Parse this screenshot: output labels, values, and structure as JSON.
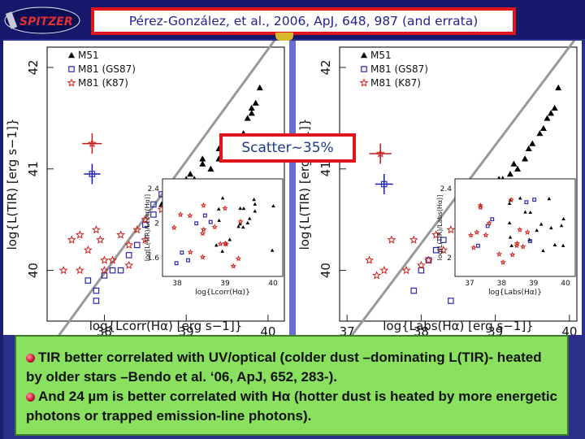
{
  "header": {
    "logo_text": "SPITZER",
    "citation": "Pérez-González, et al., 2006, ApJ, 648, 987 (and errata)"
  },
  "callout": {
    "text": "Scatter~35%"
  },
  "legend": [
    {
      "name": "M51",
      "marker": "filled-triangle",
      "color": "#000000"
    },
    {
      "name": "M81  (GS87)",
      "marker": "open-square",
      "color": "#2a2ab0"
    },
    {
      "name": "M81  (K87)",
      "marker": "open-star",
      "color": "#d0201c"
    }
  ],
  "bullets": [
    {
      "icon": "red-bullet-icon",
      "text": "TIR better correlated with UV/optical (colder dust –dominating L(TIR)- heated by older stars –Bendo et al. ‘06, ApJ, 652, 283-)."
    },
    {
      "icon": "red-bullet-icon",
      "text": "And 24 µm is better correlated with Hα (hotter dust is heated by more energetic photons or trapped emission-line photons)."
    }
  ],
  "chart_data": [
    {
      "type": "scatter",
      "panel": "left",
      "xlabel": "log{Lcorr(Hα) [erg s−1]}",
      "xlabel_sup": "corr",
      "ylabel": "log{L(TIR) [erg s−1]}",
      "xlim": [
        37.3,
        40.2
      ],
      "ylim": [
        39.5,
        42.2
      ],
      "xticks": [
        "38",
        "39",
        "40"
      ],
      "yticks": [
        "40",
        "41",
        "42"
      ],
      "fit_line": {
        "x": [
          37.3,
          40.2
        ],
        "y": [
          39.2,
          42.4
        ]
      },
      "series": [
        {
          "name": "M51",
          "points": [
            [
              39.9,
              41.8
            ],
            [
              39.85,
              41.65
            ],
            [
              39.8,
              41.6
            ],
            [
              39.75,
              41.5
            ],
            [
              39.7,
              41.35
            ],
            [
              39.65,
              41.3
            ],
            [
              39.6,
              41.25
            ],
            [
              39.5,
              41.2
            ],
            [
              39.4,
              41.1
            ],
            [
              39.3,
              41.0
            ],
            [
              39.2,
              41.05
            ],
            [
              39.1,
              40.9
            ],
            [
              39.05,
              40.95
            ],
            [
              39.0,
              40.85
            ],
            [
              38.95,
              40.85
            ],
            [
              38.9,
              40.8
            ],
            [
              38.85,
              40.75
            ],
            [
              38.8,
              40.7
            ],
            [
              38.75,
              40.7
            ],
            [
              39.0,
              40.9
            ],
            [
              39.2,
              41.1
            ],
            [
              39.4,
              41.2
            ],
            [
              39.6,
              41.3
            ],
            [
              39.8,
              41.55
            ],
            [
              38.7,
              40.65
            ]
          ]
        },
        {
          "name": "M81 (GS87)",
          "points": [
            [
              38.7,
              40.75
            ],
            [
              38.6,
              40.65
            ],
            [
              38.5,
              40.45
            ],
            [
              38.4,
              40.25
            ],
            [
              38.3,
              40.15
            ],
            [
              38.2,
              40.0
            ],
            [
              38.1,
              40.0
            ],
            [
              38.0,
              39.95
            ],
            [
              37.9,
              39.8
            ],
            [
              37.8,
              39.9
            ],
            [
              38.6,
              40.55
            ],
            [
              37.9,
              39.7
            ]
          ]
        },
        {
          "name": "M81 (K87)",
          "points": [
            [
              38.8,
              40.8
            ],
            [
              38.7,
              40.6
            ],
            [
              38.5,
              40.3
            ],
            [
              38.4,
              40.4
            ],
            [
              38.3,
              40.25
            ],
            [
              38.2,
              40.35
            ],
            [
              38.1,
              40.1
            ],
            [
              38.0,
              40.1
            ],
            [
              37.95,
              40.3
            ],
            [
              37.9,
              40.4
            ],
            [
              37.8,
              40.2
            ],
            [
              37.7,
              40.0
            ],
            [
              37.6,
              40.3
            ],
            [
              38.5,
              40.5
            ],
            [
              38.3,
              40.05
            ],
            [
              38.0,
              40.0
            ],
            [
              37.7,
              40.35
            ],
            [
              37.5,
              40.0
            ]
          ]
        }
      ],
      "error_points": [
        {
          "series": "M81 (K87)",
          "x": 37.85,
          "y": 41.25,
          "xerr": 0.12,
          "yerr": 0.1
        },
        {
          "series": "M81 (GS87)",
          "x": 37.85,
          "y": 40.95,
          "xerr": 0.1,
          "yerr": 0.1
        }
      ],
      "inset": {
        "xlabel": "log{Lcorr(Hα)}",
        "ylabel": "log[L(TIR)/Lcorr(Hα)]",
        "xticks": [
          "38",
          "39",
          "40"
        ],
        "yticks": [
          "1.6",
          "2",
          "2.4"
        ]
      }
    },
    {
      "type": "scatter",
      "panel": "right",
      "xlabel": "log{Labs(Hα) [erg s−1]}",
      "xlabel_sup": "abs",
      "ylabel": "log{L(TIR) [erg s−1]}",
      "xlim": [
        36.9,
        40.1
      ],
      "ylim": [
        39.5,
        42.2
      ],
      "xticks": [
        "37",
        "38",
        "39",
        "40"
      ],
      "yticks": [
        "40",
        "41",
        "42"
      ],
      "fit_line": {
        "x": [
          36.9,
          40.1
        ],
        "y": [
          39.2,
          42.3
        ]
      },
      "series": [
        {
          "name": "M51",
          "points": [
            [
              39.85,
              41.8
            ],
            [
              39.8,
              41.6
            ],
            [
              39.7,
              41.5
            ],
            [
              39.6,
              41.35
            ],
            [
              39.5,
              41.25
            ],
            [
              39.4,
              41.1
            ],
            [
              39.3,
              41.0
            ],
            [
              39.2,
              40.95
            ],
            [
              39.1,
              40.9
            ],
            [
              39.0,
              40.8
            ],
            [
              38.95,
              40.8
            ],
            [
              38.9,
              40.75
            ],
            [
              39.05,
              40.9
            ],
            [
              39.25,
              41.05
            ],
            [
              39.45,
              41.2
            ],
            [
              39.65,
              41.4
            ],
            [
              39.75,
              41.55
            ],
            [
              38.85,
              40.7
            ]
          ]
        },
        {
          "name": "M81 (GS87)",
          "points": [
            [
              38.8,
              40.75
            ],
            [
              38.6,
              40.6
            ],
            [
              38.5,
              40.5
            ],
            [
              38.3,
              40.3
            ],
            [
              38.2,
              40.2
            ],
            [
              38.0,
              40.0
            ],
            [
              37.9,
              39.8
            ],
            [
              38.4,
              39.7
            ],
            [
              38.1,
              40.1
            ],
            [
              38.65,
              40.35
            ]
          ]
        },
        {
          "name": "M81 (K87)",
          "points": [
            [
              38.9,
              40.7
            ],
            [
              38.7,
              40.55
            ],
            [
              38.5,
              40.3
            ],
            [
              38.4,
              40.4
            ],
            [
              38.3,
              40.2
            ],
            [
              38.2,
              40.35
            ],
            [
              38.1,
              40.1
            ],
            [
              38.0,
              40.05
            ],
            [
              37.9,
              40.3
            ],
            [
              37.8,
              40.0
            ],
            [
              37.6,
              40.3
            ],
            [
              37.5,
              40.0
            ],
            [
              37.4,
              39.95
            ],
            [
              37.3,
              40.1
            ],
            [
              38.6,
              40.5
            ]
          ]
        }
      ],
      "error_points": [
        {
          "series": "M81 (K87)",
          "x": 37.45,
          "y": 41.15,
          "xerr": 0.15,
          "yerr": 0.1
        },
        {
          "series": "M81 (GS87)",
          "x": 37.5,
          "y": 40.85,
          "xerr": 0.12,
          "yerr": 0.1
        }
      ],
      "inset": {
        "xlabel": "log{Labs(Hα)}",
        "ylabel": "log[L(TIR)/Labs(Hα)]",
        "xticks": [
          "37",
          "38",
          "39",
          "40"
        ],
        "yticks": [
          "2",
          "2.4"
        ]
      }
    }
  ]
}
